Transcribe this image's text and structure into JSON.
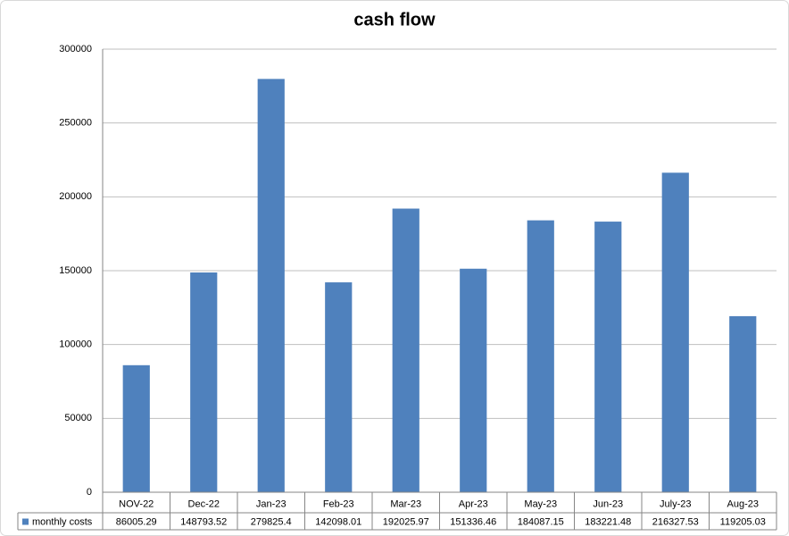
{
  "chart_data": {
    "type": "bar",
    "title": "cash flow",
    "categories": [
      "NOV-22",
      "Dec-22",
      "Jan-23",
      "Feb-23",
      "Mar-23",
      "Apr-23",
      "May-23",
      "Jun-23",
      "July-23",
      "Aug-23"
    ],
    "series": [
      {
        "name": "monthly costs",
        "color": "#4f81bd",
        "values": [
          86005.29,
          148793.52,
          279825.4,
          142098.01,
          192025.97,
          151336.46,
          184087.15,
          183221.48,
          216327.53,
          119205.03
        ]
      }
    ],
    "ylim": [
      0,
      300000
    ],
    "yticks": [
      0,
      50000,
      100000,
      150000,
      200000,
      250000,
      300000
    ],
    "grid": true,
    "data_table": true
  }
}
